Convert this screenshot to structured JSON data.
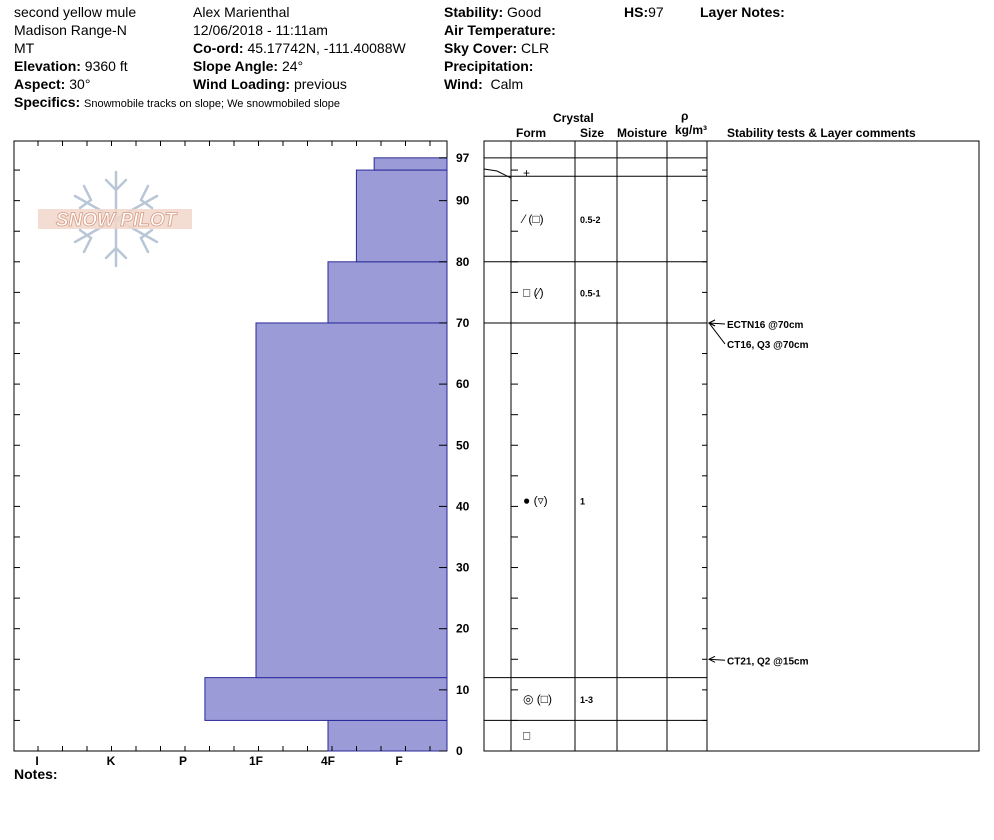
{
  "header": {
    "col1": {
      "name": "second yellow mule",
      "range": "Madison Range-N",
      "state": "MT",
      "elevation_label": "Elevation:",
      "elevation": "9360 ft",
      "aspect_label": "Aspect:",
      "aspect": "30°",
      "specifics_label": "Specifics:",
      "specifics": "Snowmobile tracks on slope; We snowmobiled slope"
    },
    "col2": {
      "observer": "Alex Marienthal",
      "datetime": "12/06/2018 - 11:11am",
      "coord_label": "Co-ord:",
      "coord": "45.17742N, -111.40088W",
      "slope_label": "Slope Angle:",
      "slope": "24°",
      "wind_loading_label": "Wind Loading:",
      "wind_loading": "previous"
    },
    "col3": {
      "stability_label": "Stability:",
      "stability": "Good",
      "air_temp_label": "Air Temperature:",
      "sky_cover_label": "Sky Cover:",
      "sky_cover": "CLR",
      "precip_label": "Precipitation:",
      "wind_label": "Wind:",
      "wind": "Calm"
    },
    "col4": {
      "hs_label": "HS:",
      "hs": "97",
      "layer_notes_label": "Layer Notes:"
    }
  },
  "logo_text": "SNOW PILOT",
  "notes_label": "Notes:",
  "columns": {
    "crystal": "Crystal",
    "form": "Form",
    "size": "Size",
    "moisture": "Moisture",
    "rho": "ρ",
    "density_unit": "kg/m³",
    "tests": "Stability tests & Layer comments"
  },
  "chart_data": {
    "type": "bar",
    "description_axes": "hardness profile (horizontal bars) vs snow height in cm",
    "ylim": [
      0,
      97
    ],
    "y_ticks": [
      0,
      10,
      20,
      30,
      40,
      50,
      60,
      70,
      80,
      90,
      97
    ],
    "hardness_categories": [
      "I",
      "K",
      "P",
      "1F",
      "4F",
      "F"
    ],
    "layers": [
      {
        "bottom": 0,
        "top": 5,
        "hardness": "4F"
      },
      {
        "bottom": 5,
        "top": 12,
        "hardness": "1F+"
      },
      {
        "bottom": 12,
        "top": 70,
        "hardness": "1F"
      },
      {
        "bottom": 70,
        "top": 80,
        "hardness": "4F"
      },
      {
        "bottom": 80,
        "top": 95,
        "hardness": "F+"
      },
      {
        "bottom": 95,
        "top": 97,
        "hardness": "F"
      }
    ],
    "hardness_index": {
      "I": 0,
      "K": 1,
      "P": 2,
      "1F+": 2.3,
      "1F": 3,
      "4F": 4,
      "F+": 4.4,
      "F": 4.65
    },
    "bar_color": "#9b9bd7",
    "bar_stroke": "#2a2a9a",
    "crystal_rows": [
      {
        "bottom": 95,
        "top": 97,
        "form": "",
        "size": ""
      },
      {
        "bottom": 94,
        "top": 95,
        "form": "+",
        "size": ""
      },
      {
        "bottom": 80,
        "top": 94,
        "form": "⁄ (□)",
        "size": "0.5-2"
      },
      {
        "bottom": 70,
        "top": 80,
        "form": "□ (⁄)",
        "size": "0.5-1"
      },
      {
        "bottom": 12,
        "top": 70,
        "form": "● (▿)",
        "size": "1"
      },
      {
        "bottom": 5,
        "top": 12,
        "form": "◎ (□)",
        "size": "1-3"
      },
      {
        "bottom": 0,
        "top": 5,
        "form": "□",
        "size": ""
      }
    ],
    "tests": [
      {
        "height": 70,
        "label": "ECTN16 @70cm"
      },
      {
        "height": 70,
        "label": "CT16, Q3 @70cm",
        "offset": true
      },
      {
        "height": 15,
        "label": "CT21, Q2 @15cm"
      }
    ]
  }
}
